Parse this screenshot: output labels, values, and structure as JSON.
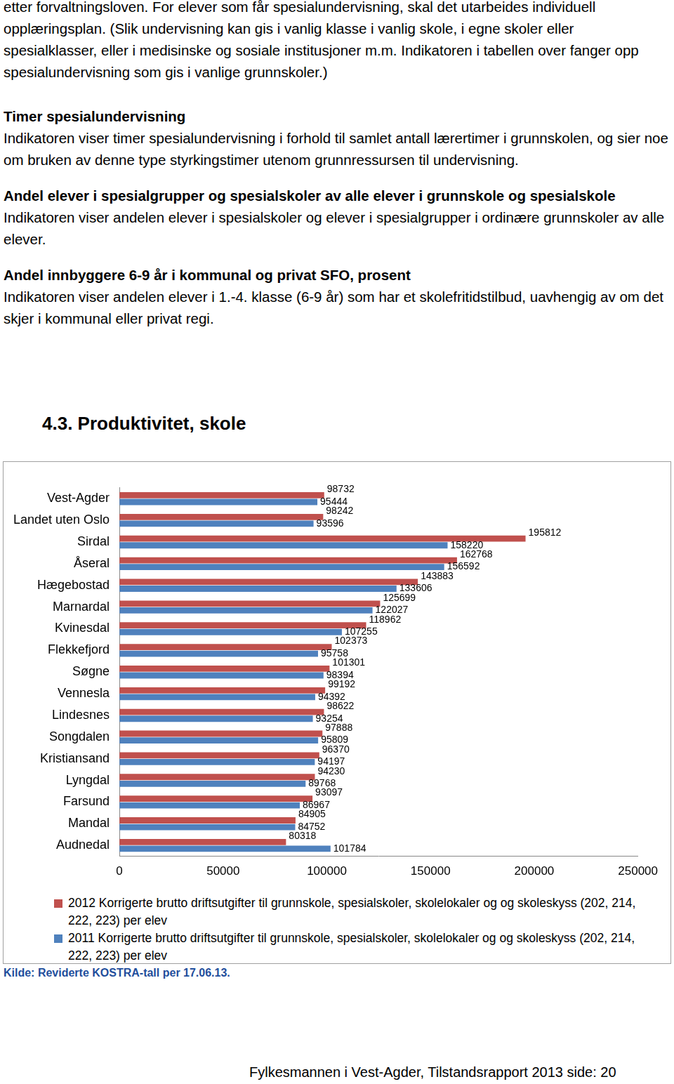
{
  "intro_paragraph": "etter forvaltningsloven. For elever som får spesialundervisning, skal det utarbeides individuell opplæringsplan. (Slik undervisning kan gis i vanlig klasse i vanlig skole, i egne skoler eller spesialklasser, eller i medisinske og sosiale institusjoner m.m. Indikatoren i tabellen over fanger opp spesialundervisning som gis i vanlige grunnskoler.)",
  "sections": [
    {
      "title": "Timer spesialundervisning",
      "text": "Indikatoren viser timer spesialundervisning i forhold til samlet antall lærertimer i grunnskolen, og sier noe om bruken av denne type styrkingstimer utenom grunnressursen til undervisning."
    },
    {
      "title": "Andel elever i spesialgrupper og spesialskoler av alle elever i grunnskole og spesialskole",
      "text": "Indikatoren viser andelen elever i spesialskoler og elever i spesialgrupper i ordinære grunnskoler av alle elever."
    },
    {
      "title": "Andel innbyggere 6-9 år i kommunal og privat SFO, prosent",
      "text": "Indikatoren viser andelen elever i 1.-4. klasse (6-9 år) som har et skolefritidstilbud, uavhengig av om det skjer i kommunal eller privat regi."
    }
  ],
  "heading": "4.3. Produktivitet, skole",
  "chart_data": {
    "type": "bar",
    "orientation": "horizontal",
    "categories": [
      "Vest-Agder",
      "Landet uten Oslo",
      "Sirdal",
      "Åseral",
      "Hægebostad",
      "Marnardal",
      "Kvinesdal",
      "Flekkefjord",
      "Søgne",
      "Vennesla",
      "Lindesnes",
      "Songdalen",
      "Kristiansand",
      "Lyngdal",
      "Farsund",
      "Mandal",
      "Audnedal"
    ],
    "series": [
      {
        "name": "2012 Korrigerte brutto driftsutgifter til grunnskole, spesialskoler, skolelokaler og og skoleskyss (202, 214, 222, 223) per elev",
        "color": "#c0504d",
        "values": [
          98732,
          98242,
          195812,
          162768,
          143883,
          125699,
          118962,
          102373,
          101301,
          99192,
          98622,
          97888,
          96370,
          94230,
          93097,
          84905,
          80318
        ]
      },
      {
        "name": "2011 Korrigerte brutto driftsutgifter til grunnskole, spesialskoler, skolelokaler og og skoleskyss (202, 214, 222, 223) per elev",
        "color": "#4f81bd",
        "values": [
          95444,
          93596,
          158220,
          156592,
          133606,
          122027,
          107255,
          95758,
          98394,
          94392,
          93254,
          95809,
          94197,
          89768,
          86967,
          84752,
          101784
        ]
      }
    ],
    "xlim": [
      0,
      250000
    ],
    "xticks": [
      0,
      50000,
      100000,
      150000,
      200000,
      250000
    ],
    "grid": false,
    "data_labels": true,
    "legend": "bottom"
  },
  "source": "Kilde: Reviderte KOSTRA-tall per 17.06.13.",
  "footer": "Fylkesmannen i Vest-Agder, Tilstandsrapport 2013 side: 20"
}
